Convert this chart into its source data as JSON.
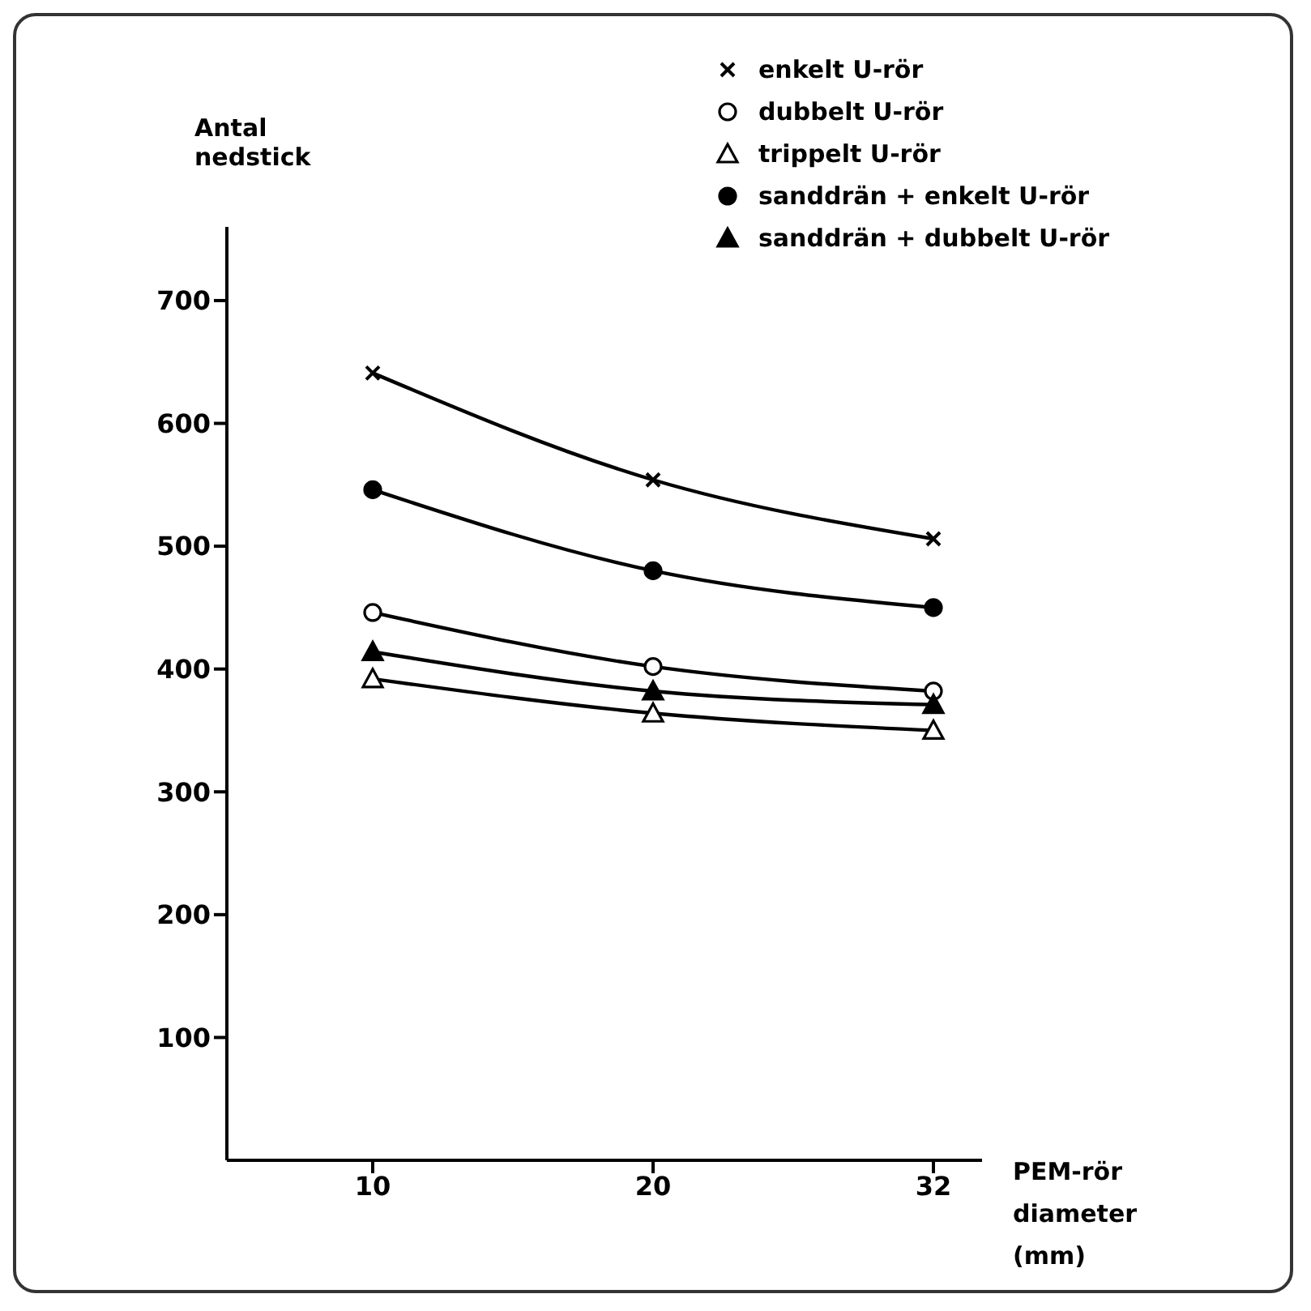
{
  "chart_data": {
    "type": "line",
    "xlabel": "PEM-rör diameter (mm)",
    "ylabel": "Antal nedstick",
    "categories": [
      "10",
      "20",
      "32"
    ],
    "ylim": [
      0,
      760
    ],
    "yticks": [
      100,
      200,
      300,
      400,
      500,
      600,
      700
    ],
    "grid": false,
    "legend": "top right",
    "line_style": "solid",
    "series": [
      {
        "name": "enkelt U-rör",
        "color": "#000000",
        "marker": "cross",
        "values": [
          641,
          554,
          506
        ]
      },
      {
        "name": "dubbelt U-rör",
        "color": "#000000",
        "marker": "circle-open",
        "values": [
          446,
          402,
          382
        ]
      },
      {
        "name": "trippelt U-rör",
        "color": "#000000",
        "marker": "triangle-open",
        "values": [
          392,
          364,
          350
        ]
      },
      {
        "name": "sanddrän + enkelt U-rör",
        "color": "#000000",
        "marker": "circle",
        "values": [
          546,
          480,
          450
        ]
      },
      {
        "name": "sanddrän + dubbelt U-rör",
        "color": "#000000",
        "marker": "triangle",
        "values": [
          414,
          382,
          371
        ]
      }
    ]
  }
}
